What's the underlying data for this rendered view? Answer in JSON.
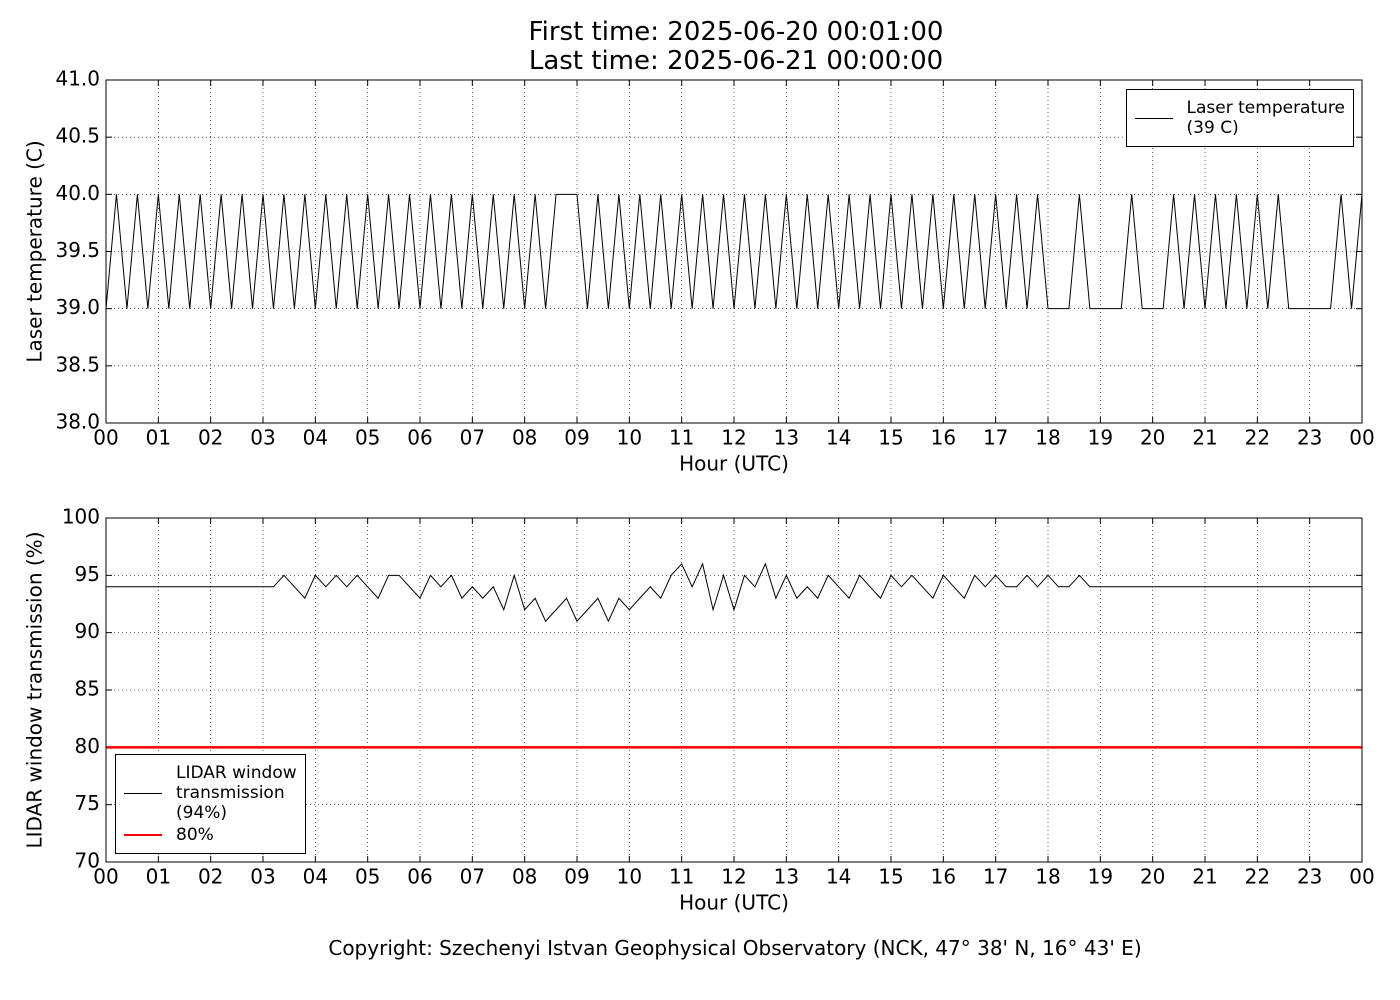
{
  "title": "First time: 2025-06-20 00:01:00\nLast time: 2025-06-21 00:00:00",
  "footer": "Copyright: Szechenyi Istvan Geophysical Observatory (NCK, 47° 38' N, 16° 43' E)",
  "chart_data": [
    {
      "type": "line",
      "ylabel": "Laser temperature (C)",
      "xlabel": "Hour (UTC)",
      "xlim": [
        0,
        24
      ],
      "ylim": [
        38,
        41
      ],
      "grid": true,
      "legend": "upper right",
      "xticks": [
        {
          "value": 0,
          "label": "00"
        },
        {
          "value": 1,
          "label": "01"
        },
        {
          "value": 2,
          "label": "02"
        },
        {
          "value": 3,
          "label": "03"
        },
        {
          "value": 4,
          "label": "04"
        },
        {
          "value": 5,
          "label": "05"
        },
        {
          "value": 6,
          "label": "06"
        },
        {
          "value": 7,
          "label": "07"
        },
        {
          "value": 8,
          "label": "08"
        },
        {
          "value": 9,
          "label": "09"
        },
        {
          "value": 10,
          "label": "10"
        },
        {
          "value": 11,
          "label": "11"
        },
        {
          "value": 12,
          "label": "12"
        },
        {
          "value": 13,
          "label": "13"
        },
        {
          "value": 14,
          "label": "14"
        },
        {
          "value": 15,
          "label": "15"
        },
        {
          "value": 16,
          "label": "16"
        },
        {
          "value": 17,
          "label": "17"
        },
        {
          "value": 18,
          "label": "18"
        },
        {
          "value": 19,
          "label": "19"
        },
        {
          "value": 20,
          "label": "20"
        },
        {
          "value": 21,
          "label": "21"
        },
        {
          "value": 22,
          "label": "22"
        },
        {
          "value": 23,
          "label": "23"
        },
        {
          "value": 24,
          "label": "00"
        }
      ],
      "yticks": [
        {
          "value": 38,
          "label": "38.0"
        },
        38.5,
        {
          "value": 39,
          "label": "39.0"
        },
        39.5,
        {
          "value": 40,
          "label": "40.0"
        },
        40.5,
        {
          "value": 41,
          "label": "41.0"
        }
      ],
      "series": [
        {
          "name": "Laser temperature\n(39 C)",
          "color": "#000000",
          "x": [
            0,
            0.2,
            0.4,
            0.6,
            0.8,
            1,
            1.2,
            1.4,
            1.6,
            1.8,
            2,
            2.2,
            2.4,
            2.6,
            2.8,
            3,
            3.2,
            3.4,
            3.6,
            3.8,
            4,
            4.2,
            4.4,
            4.6,
            4.8,
            5,
            5.2,
            5.4,
            5.6,
            5.8,
            6,
            6.2,
            6.4,
            6.6,
            6.8,
            7,
            7.2,
            7.4,
            7.6,
            7.8,
            8,
            8.2,
            8.4,
            8.6,
            8.8,
            9,
            9.2,
            9.4,
            9.6,
            9.8,
            10,
            10.2,
            10.4,
            10.6,
            10.8,
            11,
            11.2,
            11.4,
            11.6,
            11.8,
            12,
            12.2,
            12.4,
            12.6,
            12.8,
            13,
            13.2,
            13.4,
            13.6,
            13.8,
            14,
            14.2,
            14.4,
            14.6,
            14.8,
            15,
            15.2,
            15.4,
            15.6,
            15.8,
            16,
            16.2,
            16.4,
            16.6,
            16.8,
            17,
            17.2,
            17.4,
            17.6,
            17.8,
            18,
            18.2,
            18.4,
            18.6,
            18.8,
            19,
            19.2,
            19.4,
            19.6,
            19.8,
            20,
            20.2,
            20.4,
            20.6,
            20.8,
            21,
            21.2,
            21.4,
            21.6,
            21.8,
            22,
            22.2,
            22.4,
            22.6,
            22.8,
            23,
            23.2,
            23.4,
            23.6,
            23.8,
            24
          ],
          "values": [
            39,
            40,
            39,
            40,
            39,
            40,
            39,
            40,
            39,
            40,
            39,
            40,
            39,
            40,
            39,
            40,
            39,
            40,
            39,
            40,
            39,
            40,
            39,
            40,
            39,
            40,
            39,
            40,
            39,
            40,
            39,
            40,
            39,
            40,
            39,
            40,
            39,
            40,
            39,
            40,
            39,
            40,
            39,
            40,
            40,
            40,
            39,
            40,
            39,
            40,
            39,
            40,
            39,
            40,
            39,
            40,
            39,
            40,
            39,
            40,
            39,
            40,
            39,
            40,
            39,
            40,
            39,
            40,
            39,
            40,
            39,
            40,
            39,
            40,
            39,
            40,
            39,
            40,
            39,
            40,
            39,
            40,
            39,
            40,
            39,
            40,
            39,
            40,
            39,
            40,
            39,
            39,
            39,
            40,
            39,
            39,
            39,
            39,
            40,
            39,
            39,
            39,
            40,
            39,
            40,
            39,
            40,
            39,
            40,
            39,
            40,
            39,
            40,
            39,
            39,
            39,
            39,
            39,
            40,
            39,
            40
          ]
        }
      ]
    },
    {
      "type": "line",
      "ylabel": "LIDAR window transmission (%)",
      "xlabel": "Hour (UTC)",
      "xlim": [
        0,
        24
      ],
      "ylim": [
        70,
        100
      ],
      "grid": true,
      "legend": "lower left",
      "xticks": [
        {
          "value": 0,
          "label": "00"
        },
        {
          "value": 1,
          "label": "01"
        },
        {
          "value": 2,
          "label": "02"
        },
        {
          "value": 3,
          "label": "03"
        },
        {
          "value": 4,
          "label": "04"
        },
        {
          "value": 5,
          "label": "05"
        },
        {
          "value": 6,
          "label": "06"
        },
        {
          "value": 7,
          "label": "07"
        },
        {
          "value": 8,
          "label": "08"
        },
        {
          "value": 9,
          "label": "09"
        },
        {
          "value": 10,
          "label": "10"
        },
        {
          "value": 11,
          "label": "11"
        },
        {
          "value": 12,
          "label": "12"
        },
        {
          "value": 13,
          "label": "13"
        },
        {
          "value": 14,
          "label": "14"
        },
        {
          "value": 15,
          "label": "15"
        },
        {
          "value": 16,
          "label": "16"
        },
        {
          "value": 17,
          "label": "17"
        },
        {
          "value": 18,
          "label": "18"
        },
        {
          "value": 19,
          "label": "19"
        },
        {
          "value": 20,
          "label": "20"
        },
        {
          "value": 21,
          "label": "21"
        },
        {
          "value": 22,
          "label": "22"
        },
        {
          "value": 23,
          "label": "23"
        },
        {
          "value": 24,
          "label": "00"
        }
      ],
      "yticks": [
        70,
        75,
        80,
        85,
        90,
        95,
        100
      ],
      "series": [
        {
          "name": "LIDAR window\ntransmission\n(94%)",
          "color": "#000000",
          "x": [
            0,
            0.2,
            0.4,
            0.6,
            0.8,
            1,
            1.2,
            1.4,
            1.6,
            1.8,
            2,
            2.2,
            2.4,
            2.6,
            2.8,
            3,
            3.2,
            3.4,
            3.6,
            3.8,
            4,
            4.2,
            4.4,
            4.6,
            4.8,
            5,
            5.2,
            5.4,
            5.6,
            5.8,
            6,
            6.2,
            6.4,
            6.6,
            6.8,
            7,
            7.2,
            7.4,
            7.6,
            7.8,
            8,
            8.2,
            8.4,
            8.6,
            8.8,
            9,
            9.2,
            9.4,
            9.6,
            9.8,
            10,
            10.2,
            10.4,
            10.6,
            10.8,
            11,
            11.2,
            11.4,
            11.6,
            11.8,
            12,
            12.2,
            12.4,
            12.6,
            12.8,
            13,
            13.2,
            13.4,
            13.6,
            13.8,
            14,
            14.2,
            14.4,
            14.6,
            14.8,
            15,
            15.2,
            15.4,
            15.6,
            15.8,
            16,
            16.2,
            16.4,
            16.6,
            16.8,
            17,
            17.2,
            17.4,
            17.6,
            17.8,
            18,
            18.2,
            18.4,
            18.6,
            18.8,
            19,
            19.2,
            19.4,
            19.6,
            19.8,
            20,
            20.2,
            20.4,
            20.6,
            20.8,
            21,
            21.2,
            21.4,
            21.6,
            21.8,
            22,
            22.2,
            22.4,
            22.6,
            22.8,
            23,
            23.2,
            23.4,
            23.6,
            23.8,
            24
          ],
          "values": [
            94,
            94,
            94,
            94,
            94,
            94,
            94,
            94,
            94,
            94,
            94,
            94,
            94,
            94,
            94,
            94,
            94,
            95,
            94,
            93,
            95,
            94,
            95,
            94,
            95,
            94,
            93,
            95,
            95,
            94,
            93,
            95,
            94,
            95,
            93,
            94,
            93,
            94,
            92,
            95,
            92,
            93,
            91,
            92,
            93,
            91,
            92,
            93,
            91,
            93,
            92,
            93,
            94,
            93,
            95,
            96,
            94,
            96,
            92,
            95,
            92,
            95,
            94,
            96,
            93,
            95,
            93,
            94,
            93,
            95,
            94,
            93,
            95,
            94,
            93,
            95,
            94,
            95,
            94,
            93,
            95,
            94,
            93,
            95,
            94,
            95,
            94,
            94,
            95,
            94,
            95,
            94,
            94,
            95,
            94,
            94,
            94,
            94,
            94,
            94,
            94,
            94,
            94,
            94,
            94,
            94,
            94,
            94,
            94,
            94,
            94,
            94,
            94,
            94,
            94,
            94,
            94,
            94,
            94,
            94,
            94
          ]
        },
        {
          "name": "80%",
          "color": "#ff0000",
          "width": 2.5,
          "x": [
            0,
            24
          ],
          "values": [
            80,
            80
          ]
        }
      ]
    }
  ]
}
